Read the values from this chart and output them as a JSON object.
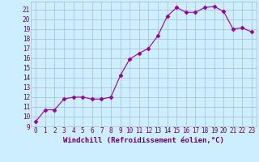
{
  "x": [
    0,
    1,
    2,
    3,
    4,
    5,
    6,
    7,
    8,
    9,
    10,
    11,
    12,
    13,
    14,
    15,
    16,
    17,
    18,
    19,
    20,
    21,
    22,
    23
  ],
  "y": [
    9.5,
    10.7,
    10.7,
    11.8,
    12.0,
    12.0,
    11.8,
    11.8,
    12.0,
    14.2,
    15.9,
    16.5,
    17.0,
    18.3,
    20.3,
    21.2,
    20.7,
    20.7,
    21.2,
    21.3,
    20.8,
    19.0,
    19.1,
    18.7
  ],
  "line_color": "#990099",
  "marker": "D",
  "marker_size": 2.5,
  "bg_color": "#cceeff",
  "grid_color": "#aabbcc",
  "xlabel": "Windchill (Refroidissement éolien,°C)",
  "ylabel_ticks": [
    9,
    10,
    11,
    12,
    13,
    14,
    15,
    16,
    17,
    18,
    19,
    20,
    21
  ],
  "xlim": [
    -0.5,
    23.5
  ],
  "ylim": [
    9,
    21.8
  ],
  "xtick_labels": [
    "0",
    "1",
    "2",
    "3",
    "4",
    "5",
    "6",
    "7",
    "8",
    "9",
    "10",
    "11",
    "12",
    "13",
    "14",
    "15",
    "16",
    "17",
    "18",
    "19",
    "20",
    "21",
    "22",
    "23"
  ],
  "label_color": "#660066",
  "axis_label_fontsize": 6.5,
  "tick_fontsize": 5.5
}
